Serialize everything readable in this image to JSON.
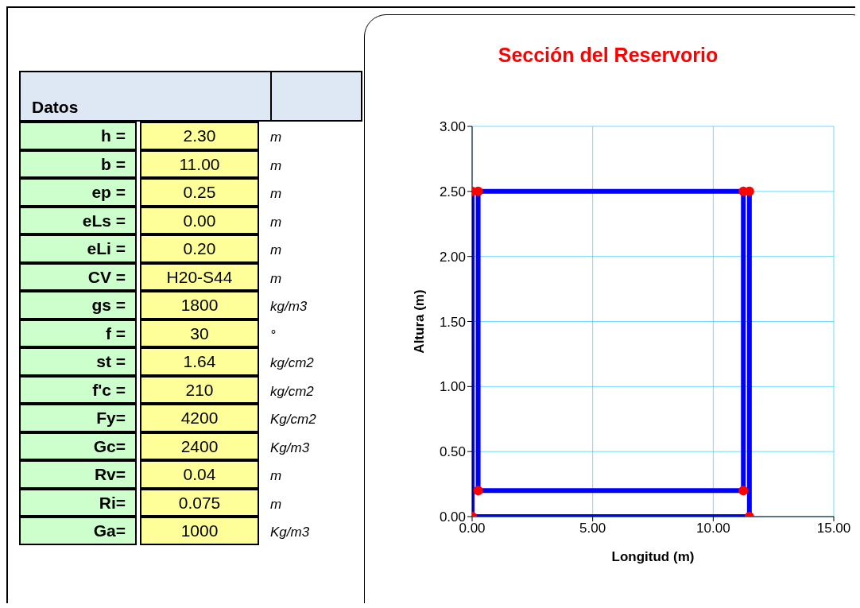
{
  "chart_data": [
    {
      "type": "other",
      "title": "Datos",
      "categories": [
        "h =",
        "b =",
        "ep =",
        "eLs =",
        "eLi =",
        "CV =",
        "gs =",
        "f =",
        "st =",
        "f'c =",
        "Fy=",
        "Gc=",
        "Rv=",
        "Ri=",
        "Ga="
      ],
      "value_labels": [
        "2.30",
        "11.00",
        "0.25",
        "0.00",
        "0.20",
        "H20-S44",
        "1800",
        "30",
        "1.64",
        "210",
        "4200",
        "2400",
        "0.04",
        "0.075",
        "1000"
      ],
      "annotations": [
        "m",
        "m",
        "m",
        "m",
        "m",
        "m",
        "kg/m3",
        "°",
        "kg/cm2",
        "kg/cm2",
        "Kg/cm2",
        "Kg/m3",
        "m",
        "m",
        "Kg/m3"
      ]
    },
    {
      "type": "line",
      "title": "Sección del Reservorio",
      "xlabel": "Longitud (m)",
      "ylabel": "Altura (m)",
      "series": [
        {
          "type": "line",
          "color": "#0000ff",
          "x": [
            0,
            11.5
          ],
          "values": [
            0,
            0
          ]
        },
        {
          "type": "line",
          "color": "#0000ff",
          "x": [
            0.25,
            11.25
          ],
          "values": [
            0.2,
            0.2
          ]
        },
        {
          "type": "line",
          "color": "#0000ff",
          "x": [
            0,
            11.5
          ],
          "values": [
            2.5,
            2.5
          ]
        },
        {
          "type": "line",
          "color": "#0000ff",
          "x": [
            0,
            0
          ],
          "values": [
            0,
            2.5
          ]
        },
        {
          "type": "line",
          "color": "#0000ff",
          "x": [
            0.25,
            0.25
          ],
          "values": [
            0.2,
            2.5
          ]
        },
        {
          "type": "line",
          "color": "#0000ff",
          "x": [
            11.25,
            11.25
          ],
          "values": [
            0.2,
            2.5
          ]
        },
        {
          "type": "line",
          "color": "#0000ff",
          "x": [
            11.5,
            11.5
          ],
          "values": [
            0,
            2.5
          ]
        },
        {
          "type": "scatter",
          "color": "#ff0000",
          "x": [
            0,
            11.5,
            11.5,
            11.25,
            11.25,
            0.25,
            0.25,
            0
          ],
          "values": [
            0,
            0,
            2.5,
            2.5,
            0.2,
            0.2,
            2.5,
            2.5
          ]
        }
      ],
      "xlim": [
        0,
        15
      ],
      "xticks": [
        {
          "value": 0,
          "label": "0.00"
        },
        {
          "value": 5,
          "label": "5.00"
        },
        {
          "value": 10,
          "label": "10.00"
        },
        {
          "value": 15,
          "label": "15.00"
        }
      ],
      "ylim": [
        0,
        3
      ],
      "yticks": [
        {
          "value": 0,
          "label": "0.00"
        },
        {
          "value": 0.5,
          "label": "0.50"
        },
        {
          "value": 1,
          "label": "1.00"
        },
        {
          "value": 1.5,
          "label": "1.50"
        },
        {
          "value": 2,
          "label": "2.00"
        },
        {
          "value": 2.5,
          "label": "2.50"
        },
        {
          "value": 3,
          "label": "3.00"
        }
      ],
      "grid": true,
      "line_style": "solid"
    }
  ]
}
